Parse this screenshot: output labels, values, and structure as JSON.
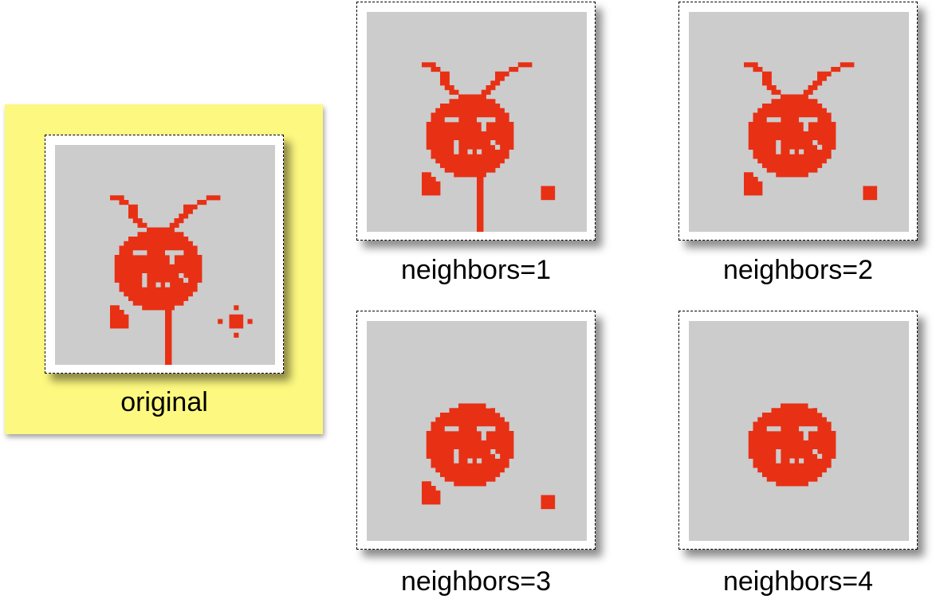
{
  "colors": {
    "sprite": "#e83015",
    "canvas": "#cccccc",
    "highlight": "#fdf87f"
  },
  "panels": [
    {
      "label": "original"
    },
    {
      "label": "neighbors=1"
    },
    {
      "label": "neighbors=2"
    },
    {
      "label": "neighbors=3"
    },
    {
      "label": "neighbors=4"
    }
  ]
}
